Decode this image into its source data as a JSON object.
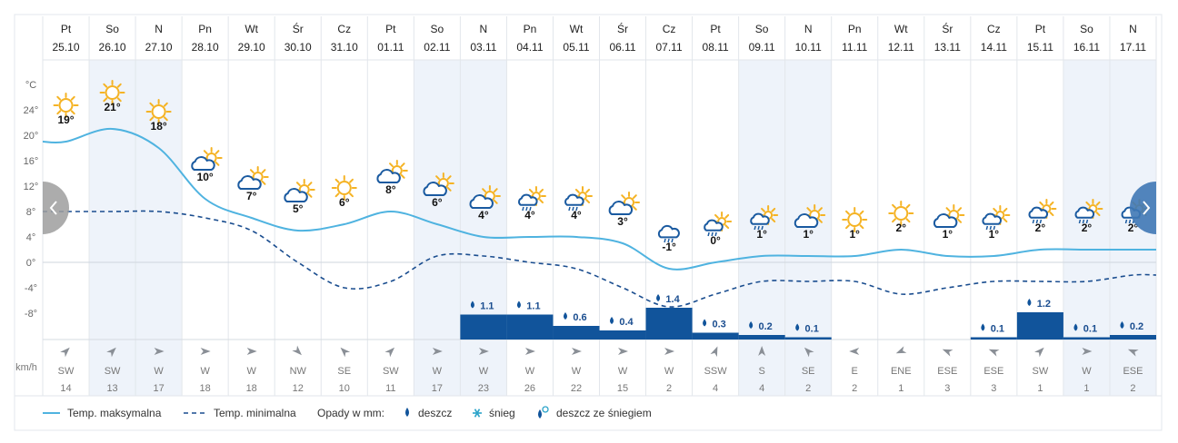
{
  "chart_data": {
    "type": "line",
    "title": "",
    "y_unit": "°C",
    "y_ticks": [
      24,
      20,
      16,
      12,
      8,
      4,
      0,
      -4,
      -8
    ],
    "y_tick_labels": [
      "24°",
      "20°",
      "16°",
      "12°",
      "8°",
      "4°",
      "0°",
      "-4°",
      "-8°"
    ],
    "ylim": [
      -12,
      28
    ],
    "days": [
      {
        "day": "Pt",
        "date": "25.10"
      },
      {
        "day": "So",
        "date": "26.10"
      },
      {
        "day": "N",
        "date": "27.10"
      },
      {
        "day": "Pn",
        "date": "28.10"
      },
      {
        "day": "Wt",
        "date": "29.10"
      },
      {
        "day": "Śr",
        "date": "30.10"
      },
      {
        "day": "Cz",
        "date": "31.10"
      },
      {
        "day": "Pt",
        "date": "01.11"
      },
      {
        "day": "So",
        "date": "02.11"
      },
      {
        "day": "N",
        "date": "03.11"
      },
      {
        "day": "Pn",
        "date": "04.11"
      },
      {
        "day": "Wt",
        "date": "05.11"
      },
      {
        "day": "Śr",
        "date": "06.11"
      },
      {
        "day": "Cz",
        "date": "07.11"
      },
      {
        "day": "Pt",
        "date": "08.11"
      },
      {
        "day": "So",
        "date": "09.11"
      },
      {
        "day": "N",
        "date": "10.11"
      },
      {
        "day": "Pn",
        "date": "11.11"
      },
      {
        "day": "Wt",
        "date": "12.11"
      },
      {
        "day": "Śr",
        "date": "13.11"
      },
      {
        "day": "Cz",
        "date": "14.11"
      },
      {
        "day": "Pt",
        "date": "15.11"
      },
      {
        "day": "So",
        "date": "16.11"
      },
      {
        "day": "N",
        "date": "17.11"
      }
    ],
    "weekend_columns": [
      1,
      2,
      8,
      9,
      15,
      16,
      22,
      23
    ],
    "series": [
      {
        "name": "Temp. maksymalna",
        "style": "solid",
        "values": [
          19,
          21,
          18,
          10,
          7,
          5,
          6,
          8,
          6,
          4,
          4,
          4,
          3,
          -1,
          0,
          1,
          1,
          1,
          2,
          1,
          1,
          2,
          2,
          2
        ],
        "labels": [
          "19°",
          "21°",
          "18°",
          "10°",
          "7°",
          "5°",
          "6°",
          "8°",
          "6°",
          "4°",
          "4°",
          "4°",
          "3°",
          "-1°",
          "0°",
          "1°",
          "1°",
          "1°",
          "2°",
          "1°",
          "1°",
          "2°",
          "2°",
          "2°"
        ]
      },
      {
        "name": "Temp. minimalna",
        "style": "dashed",
        "values": [
          8,
          8,
          8,
          7,
          5,
          0,
          -4,
          -3,
          1,
          1,
          0,
          -1,
          -4,
          -7,
          -5,
          -3,
          -3,
          -3,
          -5,
          -4,
          -3,
          -3,
          -3,
          -2
        ]
      }
    ],
    "precipitation_mm": [
      0,
      0,
      0,
      0,
      0,
      0,
      0,
      0,
      0,
      1.1,
      1.1,
      0.6,
      0.4,
      1.4,
      0.3,
      0.2,
      0.1,
      0,
      0,
      0,
      0.1,
      1.2,
      0.1,
      0.2
    ],
    "precipitation_labels": [
      "",
      "",
      "",
      "",
      "",
      "",
      "",
      "",
      "",
      "1.1",
      "1.1",
      "0.6",
      "0.4",
      "1.4",
      "0.3",
      "0.2",
      "0.1",
      "",
      "",
      "",
      "0.1",
      "1.2",
      "0.1",
      "0.2"
    ],
    "weather_icons": [
      "sun",
      "sun",
      "sun",
      "sun-cloud",
      "sun-cloud",
      "sun-cloud",
      "sun",
      "sun-cloud",
      "sun-cloud",
      "sun-cloud",
      "sun-rain",
      "sun-rain",
      "sun-cloud",
      "rain",
      "sun-rain",
      "sun-rain",
      "sun-cloud",
      "sun",
      "sun",
      "sun-cloud",
      "sun-rain",
      "sun-rain",
      "sun-rain",
      "sun-rain"
    ],
    "wind_unit": "km/h",
    "wind_dir": [
      "SW",
      "SW",
      "W",
      "W",
      "W",
      "NW",
      "SE",
      "SW",
      "W",
      "W",
      "W",
      "W",
      "W",
      "W",
      "SSW",
      "S",
      "SE",
      "E",
      "ENE",
      "ESE",
      "ESE",
      "SW",
      "W",
      "ESE"
    ],
    "wind_speed": [
      "14",
      "13",
      "17",
      "18",
      "18",
      "12",
      "10",
      "11",
      "17",
      "23",
      "26",
      "22",
      "15",
      "2",
      "4",
      "4",
      "2",
      "2",
      "1",
      "3",
      "3",
      "1",
      "1",
      "2"
    ],
    "legend": {
      "max": "Temp. maksymalna",
      "min": "Temp. minimalna",
      "precip_title": "Opady w mm:",
      "rain": "deszcz",
      "snow": "śnieg",
      "mixed": "deszcz ze śniegiem"
    }
  },
  "colors": {
    "max_line": "#4fb3e0",
    "min_line": "#1a4d8f",
    "bar": "#11549b",
    "weekend": "#eef3fa",
    "sun": "#f5b324",
    "cloud": "#1a5aa0",
    "nav": "#9e9e9e",
    "nav_right": "#3f78b5"
  }
}
